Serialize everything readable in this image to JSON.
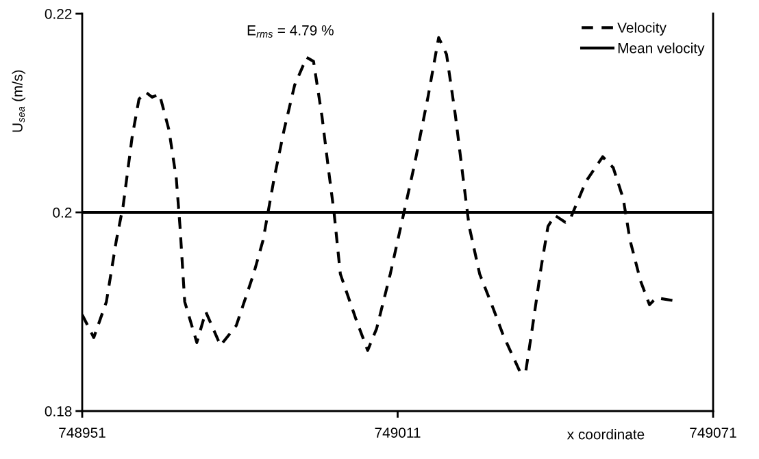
{
  "chart_data": {
    "type": "line",
    "xlabel": "x coordinate",
    "ylabel": "U$_{sea}$ (m/s)",
    "annotations": [
      "E$_{rms}$ = 4.79 %"
    ],
    "xlim": [
      748951,
      749071
    ],
    "xticks": [
      748951,
      749011,
      749071
    ],
    "ylim": [
      0.18,
      0.22
    ],
    "yticks": [
      0.18,
      0.2,
      0.22
    ],
    "grid": false,
    "legend": "top right",
    "series": [
      {
        "name": "Velocity",
        "color": "#000000",
        "line_style": "dashed",
        "x": [
          748951.0,
          748953.2,
          748955.6,
          748957.5,
          748958.8,
          748960.5,
          748961.8,
          748963.1,
          748964.3,
          748965.7,
          748967.5,
          748968.9,
          748969.6,
          748970.5,
          748972.8,
          748974.5,
          748977.3,
          748980.3,
          748983.6,
          748985.4,
          748987.5,
          748989.4,
          748991.4,
          748993.7,
          748995.0,
          748996.6,
          748997.9,
          748998.9,
          749000.1,
          749003.1,
          749005.3,
          749007.0,
          749009.6,
          749012.2,
          749014.2,
          749016.8,
          749018.8,
          749020.3,
          749022.0,
          749023.3,
          749024.6,
          749026.6,
          749029.2,
          749031.1,
          749034.4,
          749035.4,
          749036.6,
          749038.3,
          749039.6,
          749040.9,
          749042.9,
          749043.8,
          749046.8,
          749050.0,
          749052.0,
          749053.9,
          749055.2,
          749057.2,
          749058.9,
          749060.2,
          749063.7
        ],
        "values": [
          0.1897,
          0.1874,
          0.191,
          0.1972,
          0.2007,
          0.2076,
          0.2114,
          0.2121,
          0.2116,
          0.2119,
          0.2083,
          0.2034,
          0.1986,
          0.191,
          0.1869,
          0.19,
          0.1866,
          0.1886,
          0.1938,
          0.1972,
          0.2034,
          0.2083,
          0.2128,
          0.2156,
          0.2152,
          0.2097,
          0.2041,
          0.2,
          0.1938,
          0.1892,
          0.1861,
          0.1883,
          0.1938,
          0.2,
          0.2048,
          0.2117,
          0.2176,
          0.2159,
          0.2097,
          0.2041,
          0.1986,
          0.1938,
          0.1903,
          0.1876,
          0.1838,
          0.1841,
          0.1883,
          0.1945,
          0.1986,
          0.1997,
          0.199,
          0.1993,
          0.2031,
          0.2056,
          0.2045,
          0.2014,
          0.1972,
          0.1931,
          0.1907,
          0.1914,
          0.1911
        ]
      },
      {
        "name": "Mean velocity",
        "color": "#000000",
        "line_style": "solid",
        "x": [
          748951,
          749071
        ],
        "values": [
          0.2,
          0.2
        ]
      }
    ]
  }
}
